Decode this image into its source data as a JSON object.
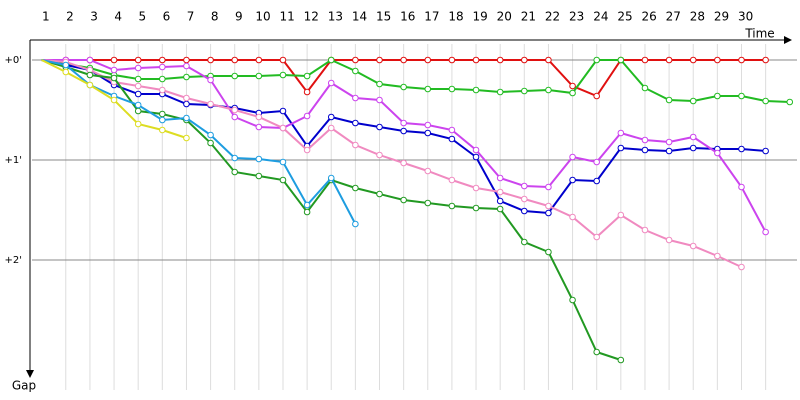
{
  "chart_data": {
    "type": "line",
    "x_label": "Time",
    "y_label": "Gap",
    "x": [
      0,
      1,
      2,
      3,
      4,
      5,
      6,
      7,
      8,
      9,
      10,
      11,
      12,
      13,
      14,
      15,
      16,
      17,
      18,
      19,
      20,
      21,
      22,
      23,
      24,
      25,
      26,
      27,
      28,
      29,
      30,
      31
    ],
    "xlim": [
      -0.4,
      31.3
    ],
    "xticks": [
      1,
      2,
      3,
      4,
      5,
      6,
      7,
      8,
      9,
      10,
      11,
      12,
      13,
      14,
      15,
      16,
      17,
      18,
      19,
      20,
      21,
      22,
      23,
      24,
      25,
      26,
      27,
      28,
      29,
      30
    ],
    "ylim": [
      -0.3,
      3.3
    ],
    "y_inverted": true,
    "yticks": [
      {
        "value": 0,
        "label": "+0'"
      },
      {
        "value": 1,
        "label": "+1'"
      },
      {
        "value": 2,
        "label": "+2'"
      }
    ],
    "grid": true,
    "series": [
      {
        "color": "#e01010",
        "values": [
          0,
          0,
          0,
          0,
          0,
          0,
          0,
          0,
          0,
          0,
          0,
          0.32,
          0,
          0,
          0,
          0,
          0,
          0,
          0,
          0,
          0,
          0,
          0.26,
          0.36,
          0,
          0,
          0,
          0,
          0,
          0,
          0,
          null
        ]
      },
      {
        "color": "#22bb22",
        "values": [
          0,
          0.04,
          0.08,
          0.15,
          0.19,
          0.19,
          0.17,
          0.16,
          0.16,
          0.16,
          0.15,
          0.16,
          0,
          0.11,
          0.24,
          0.27,
          0.29,
          0.29,
          0.3,
          0.32,
          0.31,
          0.3,
          0.33,
          0,
          0,
          0.28,
          0.4,
          0.41,
          0.36,
          0.36,
          0.41,
          0.42
        ]
      },
      {
        "color": "#0000cc",
        "values": [
          0,
          0.05,
          0.1,
          0.25,
          0.34,
          0.34,
          0.44,
          0.45,
          0.48,
          0.53,
          0.51,
          0.86,
          0.57,
          0.63,
          0.67,
          0.71,
          0.73,
          0.79,
          0.97,
          1.41,
          1.51,
          1.53,
          1.2,
          1.21,
          0.88,
          0.9,
          0.91,
          0.88,
          0.89,
          0.89,
          0.91,
          null
        ]
      },
      {
        "color": "#cc44ee",
        "values": [
          0,
          0,
          0,
          0.1,
          0.08,
          0.07,
          0.06,
          0.2,
          0.57,
          0.67,
          0.68,
          0.56,
          0.23,
          0.38,
          0.4,
          0.63,
          0.65,
          0.7,
          0.9,
          1.18,
          1.26,
          1.27,
          0.97,
          1.02,
          0.73,
          0.8,
          0.82,
          0.77,
          0.93,
          1.27,
          1.72,
          null
        ]
      },
      {
        "color": "#f08ac0",
        "values": [
          0,
          0.02,
          0.1,
          0.22,
          0.26,
          0.3,
          0.38,
          0.44,
          0.5,
          0.57,
          0.68,
          0.9,
          0.68,
          0.85,
          0.95,
          1.03,
          1.11,
          1.2,
          1.28,
          1.32,
          1.39,
          1.46,
          1.57,
          1.77,
          1.55,
          1.7,
          1.8,
          1.86,
          1.96,
          2.07,
          null,
          null
        ]
      },
      {
        "color": "#229922",
        "values": [
          0,
          0.07,
          0.15,
          0.18,
          0.51,
          0.54,
          0.6,
          0.83,
          1.12,
          1.16,
          1.2,
          1.52,
          1.2,
          1.28,
          1.34,
          1.4,
          1.43,
          1.46,
          1.48,
          1.49,
          1.82,
          1.92,
          2.4,
          2.92,
          3.0,
          null,
          null,
          null,
          null,
          null,
          null,
          null
        ]
      },
      {
        "color": "#1e9de0",
        "values": [
          0,
          0.05,
          0.25,
          0.36,
          0.45,
          0.6,
          0.58,
          0.75,
          0.98,
          0.99,
          1.02,
          1.45,
          1.18,
          1.64,
          null,
          null,
          null,
          null,
          null,
          null,
          null,
          null,
          null,
          null,
          null,
          null,
          null,
          null,
          null,
          null,
          null,
          null
        ]
      },
      {
        "color": "#dddd22",
        "values": [
          0,
          0.12,
          0.25,
          0.4,
          0.64,
          0.7,
          0.78,
          null,
          null,
          null,
          null,
          null,
          null,
          null,
          null,
          null,
          null,
          null,
          null,
          null,
          null,
          null,
          null,
          null,
          null,
          null,
          null,
          null,
          null,
          null,
          null,
          null
        ]
      }
    ]
  }
}
